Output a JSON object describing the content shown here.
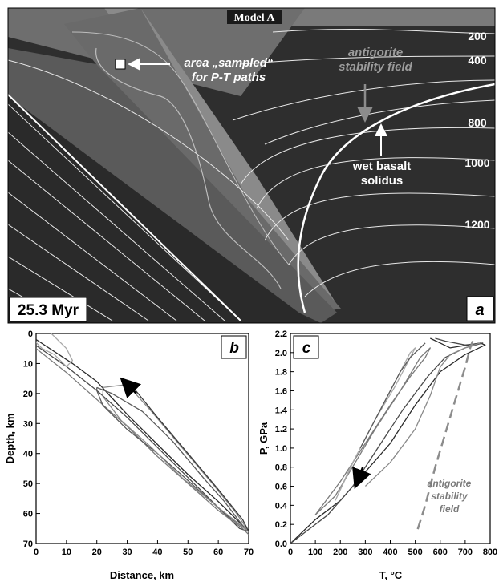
{
  "figure": {
    "panel_a": {
      "title": "Model A",
      "letter": "a",
      "age": "25.3 Myr",
      "annotation_sampled_line1": "area „sampled“",
      "annotation_sampled_line2": "for P-T paths",
      "annotation_antigorite_line1": "antigorite",
      "annotation_antigorite_line2": "stability field",
      "annotation_solidus_line1": "wet basalt",
      "annotation_solidus_line2": "solidus",
      "isotherm_labels": [
        "200",
        "400",
        "800",
        "1000",
        "1200"
      ]
    },
    "panel_b": {
      "letter": "b",
      "xlabel": "Distance, km",
      "ylabel": "Depth, km"
    },
    "panel_c": {
      "letter": "c",
      "xlabel": "T, °C",
      "ylabel": "P, GPa",
      "annotation_line1": "antigorite",
      "annotation_line2": "stability",
      "annotation_line3": "field"
    },
    "colors": {
      "mantle": "#2e2e2e",
      "wedge_light": "#8a8a8a",
      "slab_mid": "#5a5a5a",
      "isotherm": "#e8e8e8",
      "antigorite_arrow": "#8c8c8c",
      "path_gray": "#7a7a7a",
      "path_light": "#a8a8a8"
    }
  },
  "chart_data": [
    {
      "type": "line",
      "panel": "b",
      "xlabel": "Distance, km",
      "ylabel": "Depth, km",
      "xlim": [
        0,
        70
      ],
      "ylim": [
        70,
        0
      ],
      "xticks": [
        0,
        10,
        20,
        30,
        40,
        50,
        60,
        70
      ],
      "yticks": [
        0,
        10,
        20,
        30,
        40,
        50,
        60,
        70
      ],
      "series": [
        {
          "values": [
            [
              0,
              2
            ],
            [
              12,
              10
            ],
            [
              20,
              16
            ],
            [
              30,
              27
            ],
            [
              40,
              37
            ],
            [
              50,
              47
            ],
            [
              60,
              56
            ],
            [
              68,
              64
            ],
            [
              70,
              66
            ]
          ]
        },
        {
          "values": [
            [
              0,
              4
            ],
            [
              10,
              11
            ],
            [
              20,
              19
            ],
            [
              30,
              28
            ],
            [
              40,
              38
            ],
            [
              50,
              48
            ],
            [
              60,
              58
            ],
            [
              67,
              65
            ],
            [
              70,
              66
            ]
          ]
        },
        {
          "values": [
            [
              0,
              5
            ],
            [
              10,
              13
            ],
            [
              20,
              22
            ],
            [
              30,
              31
            ],
            [
              40,
              41
            ],
            [
              50,
              50
            ],
            [
              60,
              59
            ],
            [
              68,
              65
            ],
            [
              70,
              67
            ]
          ]
        },
        {
          "values": [
            [
              0,
              3
            ],
            [
              2,
              5
            ],
            [
              6,
              7
            ],
            [
              8,
              9
            ],
            [
              10,
              11
            ],
            [
              12,
              9
            ],
            [
              10,
              5
            ],
            [
              5,
              0
            ]
          ]
        },
        {
          "values": [
            [
              20,
              18
            ],
            [
              25,
              20
            ],
            [
              35,
              26
            ],
            [
              45,
              36
            ],
            [
              55,
              48
            ],
            [
              62,
              56
            ],
            [
              68,
              64
            ],
            [
              70,
              66
            ],
            [
              62,
              60
            ],
            [
              50,
              49
            ],
            [
              40,
              40
            ],
            [
              30,
              32
            ],
            [
              22,
              24
            ],
            [
              20,
              19
            ],
            [
              20,
              18
            ]
          ]
        },
        {
          "values": [
            [
              22,
              18
            ],
            [
              30,
              17
            ],
            [
              38,
              26
            ],
            [
              48,
              38
            ],
            [
              58,
              50
            ],
            [
              66,
              60
            ],
            [
              70,
              66
            ],
            [
              60,
              58
            ],
            [
              48,
              48
            ],
            [
              38,
              38
            ],
            [
              28,
              29
            ],
            [
              22,
              21
            ],
            [
              22,
              18
            ]
          ]
        },
        {
          "values": [
            [
              28,
              16
            ],
            [
              32,
              18
            ],
            [
              40,
              28
            ],
            [
              50,
              40
            ],
            [
              60,
              52
            ],
            [
              68,
              62
            ],
            [
              70,
              66
            ]
          ]
        }
      ],
      "arrow": {
        "from": [
          33,
          20
        ],
        "to": [
          29,
          16
        ]
      }
    },
    {
      "type": "line",
      "panel": "c",
      "xlabel": "T, °C",
      "ylabel": "P, GPa",
      "xlim": [
        0,
        800
      ],
      "ylim": [
        0,
        2.2
      ],
      "xticks": [
        0,
        100,
        200,
        300,
        400,
        500,
        600,
        700,
        800
      ],
      "yticks": [
        0.0,
        0.2,
        0.4,
        0.6,
        0.8,
        1.0,
        1.2,
        1.4,
        1.6,
        1.8,
        2.0,
        2.2
      ],
      "series": [
        {
          "values": [
            [
              0,
              0
            ],
            [
              100,
              0.25
            ],
            [
              200,
              0.45
            ],
            [
              300,
              0.75
            ],
            [
              400,
              1.05
            ],
            [
              500,
              1.45
            ],
            [
              600,
              1.8
            ],
            [
              700,
              1.98
            ],
            [
              780,
              2.08
            ],
            [
              760,
              2.1
            ],
            [
              640,
              2.05
            ],
            [
              600,
              2.1
            ],
            [
              560,
              2.15
            ]
          ]
        },
        {
          "values": [
            [
              0,
              0
            ],
            [
              150,
              0.3
            ],
            [
              250,
              0.6
            ],
            [
              350,
              1.0
            ],
            [
              450,
              1.4
            ],
            [
              550,
              1.75
            ],
            [
              620,
              1.95
            ],
            [
              700,
              2.05
            ],
            [
              770,
              2.1
            ],
            [
              700,
              2.08
            ],
            [
              620,
              2.12
            ],
            [
              580,
              2.15
            ]
          ]
        },
        {
          "values": [
            [
              100,
              0.3
            ],
            [
              200,
              0.65
            ],
            [
              300,
              1.05
            ],
            [
              400,
              1.45
            ],
            [
              480,
              1.75
            ],
            [
              540,
              1.95
            ],
            [
              560,
              2.05
            ],
            [
              520,
              1.95
            ],
            [
              440,
              1.6
            ],
            [
              340,
              1.2
            ],
            [
              260,
              0.85
            ],
            [
              180,
              0.5
            ],
            [
              100,
              0.3
            ]
          ]
        },
        {
          "values": [
            [
              180,
              0.45
            ],
            [
              260,
              0.9
            ],
            [
              340,
              1.3
            ],
            [
              420,
              1.65
            ],
            [
              470,
              1.9
            ],
            [
              500,
              2.05
            ],
            [
              480,
              2.0
            ],
            [
              400,
              1.6
            ],
            [
              320,
              1.2
            ],
            [
              240,
              0.8
            ],
            [
              180,
              0.45
            ]
          ]
        },
        {
          "values": [
            [
              280,
              1.0
            ],
            [
              320,
              1.2
            ],
            [
              380,
              1.5
            ],
            [
              440,
              1.8
            ],
            [
              480,
              1.95
            ],
            [
              520,
              2.05
            ],
            [
              540,
              2.1
            ]
          ]
        },
        {
          "values": [
            [
              300,
              0.6
            ],
            [
              400,
              0.85
            ],
            [
              500,
              1.2
            ],
            [
              560,
              1.55
            ],
            [
              600,
              1.85
            ],
            [
              640,
              1.98
            ],
            [
              700,
              2.05
            ],
            [
              760,
              2.1
            ]
          ]
        }
      ],
      "arrow": {
        "from": [
          290,
          0.8
        ],
        "to": [
          265,
          0.63
        ]
      },
      "antigorite_boundary": [
        [
          510,
          0.15
        ],
        [
          540,
          0.4
        ],
        [
          580,
          0.8
        ],
        [
          620,
          1.15
        ],
        [
          660,
          1.5
        ],
        [
          700,
          1.85
        ],
        [
          720,
          2.05
        ],
        [
          730,
          2.12
        ]
      ]
    }
  ]
}
